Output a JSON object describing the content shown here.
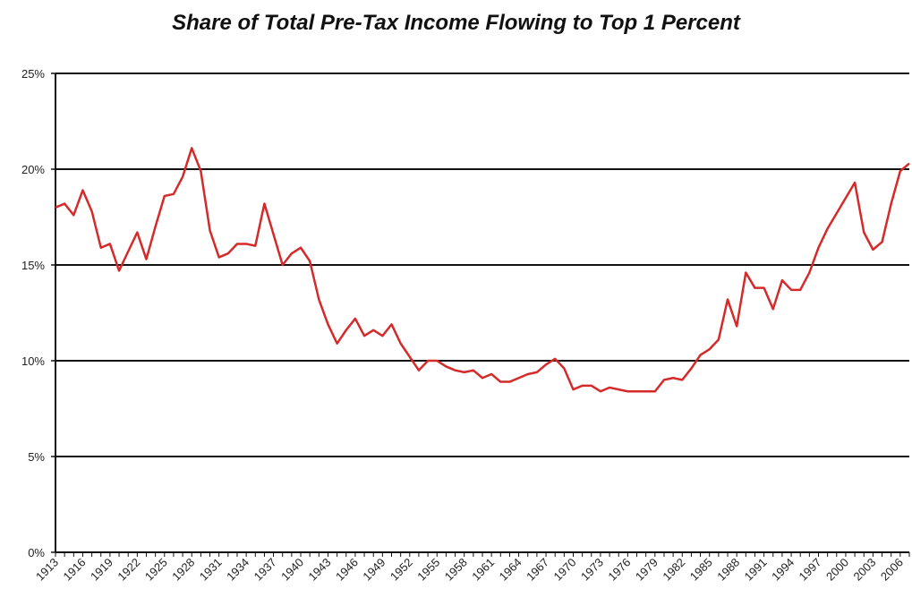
{
  "chart_data": {
    "type": "line",
    "title": "Share of Total Pre-Tax Income Flowing to Top 1 Percent",
    "xlabel": "",
    "ylabel": "",
    "ylim": [
      0,
      25
    ],
    "y_ticks": [
      "0%",
      "5%",
      "10%",
      "15%",
      "20%",
      "25%"
    ],
    "y_tick_values": [
      0,
      5,
      10,
      15,
      20,
      25
    ],
    "x_tick_labels": [
      "1913",
      "1916",
      "1919",
      "1922",
      "1925",
      "1928",
      "1931",
      "1934",
      "1937",
      "1940",
      "1943",
      "1946",
      "1949",
      "1952",
      "1955",
      "1958",
      "1961",
      "1964",
      "1967",
      "1970",
      "1973",
      "1976",
      "1979",
      "1982",
      "1985",
      "1988",
      "1991",
      "1994",
      "1997",
      "2000",
      "2003",
      "2006"
    ],
    "grid": "horizontal",
    "legend": "none",
    "line_color": "#d42a2a",
    "x": [
      1913,
      1914,
      1915,
      1916,
      1917,
      1918,
      1919,
      1920,
      1921,
      1922,
      1923,
      1924,
      1925,
      1926,
      1927,
      1928,
      1929,
      1930,
      1931,
      1932,
      1933,
      1934,
      1935,
      1936,
      1937,
      1938,
      1939,
      1940,
      1941,
      1942,
      1943,
      1944,
      1945,
      1946,
      1947,
      1948,
      1949,
      1950,
      1951,
      1952,
      1953,
      1954,
      1955,
      1956,
      1957,
      1958,
      1959,
      1960,
      1961,
      1962,
      1963,
      1964,
      1965,
      1966,
      1967,
      1968,
      1969,
      1970,
      1971,
      1972,
      1973,
      1974,
      1975,
      1976,
      1977,
      1978,
      1979,
      1980,
      1981,
      1982,
      1983,
      1984,
      1985,
      1986,
      1987,
      1988,
      1989,
      1990,
      1991,
      1992,
      1993,
      1994,
      1995,
      1996,
      1997,
      1998,
      1999,
      2000,
      2001,
      2002,
      2003,
      2004,
      2005,
      2006,
      2007
    ],
    "series": [
      {
        "values": [
          18.0,
          18.2,
          17.6,
          18.9,
          17.8,
          15.9,
          16.1,
          14.7,
          15.7,
          16.7,
          15.3,
          17.0,
          18.6,
          18.7,
          19.6,
          21.1,
          19.9,
          16.8,
          15.4,
          15.6,
          16.1,
          16.1,
          16.0,
          18.2,
          16.6,
          15.0,
          15.6,
          15.9,
          15.2,
          13.2,
          11.9,
          10.9,
          11.6,
          12.2,
          11.3,
          11.6,
          11.3,
          11.9,
          10.9,
          10.2,
          9.5,
          10.0,
          10.0,
          9.7,
          9.5,
          9.4,
          9.5,
          9.1,
          9.3,
          8.9,
          8.9,
          9.1,
          9.3,
          9.4,
          9.8,
          10.1,
          9.6,
          8.5,
          8.7,
          8.7,
          8.4,
          8.6,
          8.5,
          8.4,
          8.4,
          8.4,
          8.4,
          9.0,
          9.1,
          9.0,
          9.6,
          10.3,
          10.6,
          11.1,
          13.2,
          11.8,
          14.6,
          13.8,
          13.8,
          12.7,
          14.2,
          13.7,
          13.7,
          14.6,
          15.9,
          16.9,
          17.7,
          18.5,
          19.3,
          16.7,
          15.8,
          16.2,
          18.2,
          19.9,
          20.3
        ]
      }
    ]
  }
}
